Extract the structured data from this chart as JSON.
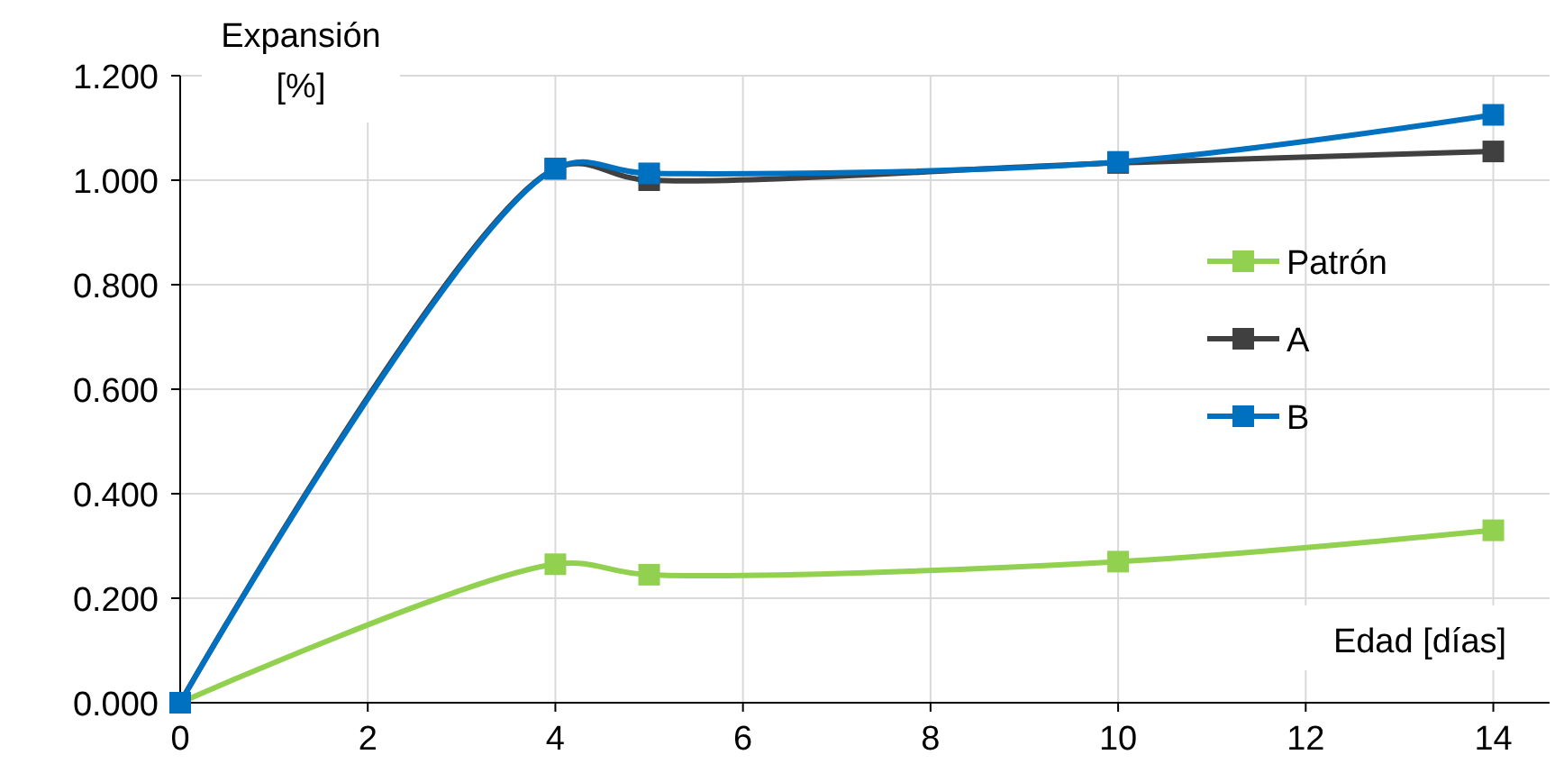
{
  "chart_data": {
    "type": "line",
    "xlabel": "Edad [días]",
    "ylabel": "Expansión [%]",
    "x": [
      0,
      4,
      5,
      10,
      14
    ],
    "series": [
      {
        "name": "Patrón",
        "color": "#92d050",
        "values": [
          0,
          0.265,
          0.245,
          0.27,
          0.33
        ]
      },
      {
        "name": "A",
        "color": "#404040",
        "values": [
          0,
          1.022,
          1.0,
          1.033,
          1.055
        ]
      },
      {
        "name": "B",
        "color": "#0070c0",
        "values": [
          0,
          1.022,
          1.013,
          1.035,
          1.125
        ]
      }
    ],
    "xlim": [
      0,
      14.6
    ],
    "xticks": [
      0,
      2,
      4,
      6,
      8,
      10,
      12,
      14
    ],
    "ylim": [
      0,
      1.2
    ],
    "yticks": [
      {
        "value": 0,
        "label": "0.000"
      },
      {
        "value": 0.2,
        "label": "0.200"
      },
      {
        "value": 0.4,
        "label": "0.400"
      },
      {
        "value": 0.6,
        "label": "0.600"
      },
      {
        "value": 0.8,
        "label": "0.800"
      },
      {
        "value": 1,
        "label": "1.000"
      },
      {
        "value": 1.2,
        "label": "1.200"
      }
    ],
    "grid": true,
    "legend": "right",
    "marker": "square",
    "line_style": "solid"
  }
}
